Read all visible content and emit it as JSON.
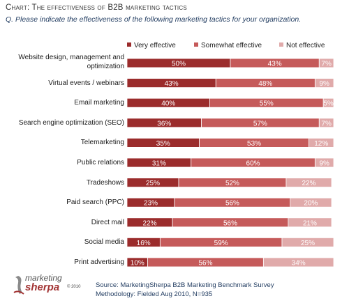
{
  "title": "Chart: The effectiveness of B2B marketing tactics",
  "question": "Q. Please indicate the effectiveness of the following marketing tactics for your organization.",
  "source_line": "Source: MarketingSherpa B2B Marketing Benchmark Survey",
  "methodology_line": "Methodology: Fielded Aug 2010, N=935",
  "logo": {
    "line1": "marketing",
    "line2": "sherpa",
    "suffix": "© 2010"
  },
  "colors": {
    "very_effective": "#9b2c2c",
    "somewhat_effective": "#c55a5a",
    "not_effective": "#e0aaaa"
  },
  "chart_data": {
    "type": "bar",
    "orientation": "horizontal",
    "stacked": true,
    "percent_stacked": true,
    "legend_position": "top",
    "categories": [
      "Website design, management and optimization",
      "Virtual events / webinars",
      "Email marketing",
      "Search engine optimization (SEO)",
      "Telemarketing",
      "Public relations",
      "Tradeshows",
      "Paid search (PPC)",
      "Direct mail",
      "Social media",
      "Print advertising"
    ],
    "series": [
      {
        "name": "Very effective",
        "values": [
          50,
          43,
          40,
          36,
          35,
          31,
          25,
          23,
          22,
          16,
          10
        ]
      },
      {
        "name": "Somewhat effective",
        "values": [
          43,
          48,
          55,
          57,
          53,
          60,
          52,
          56,
          56,
          59,
          56
        ]
      },
      {
        "name": "Not effective",
        "values": [
          7,
          9,
          5,
          7,
          12,
          9,
          22,
          20,
          21,
          25,
          34
        ]
      }
    ],
    "value_suffix": "%",
    "xlim": [
      0,
      100
    ]
  }
}
